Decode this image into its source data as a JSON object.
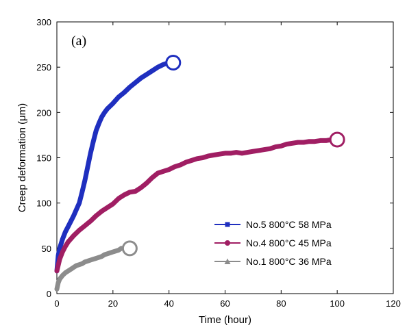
{
  "chart_data": {
    "type": "line",
    "panel_label": "(a)",
    "xlabel": "Time (hour)",
    "ylabel": "Creep deformation (μm)",
    "xlim": [
      0,
      120
    ],
    "ylim": [
      0,
      300
    ],
    "xticks": [
      0,
      20,
      40,
      60,
      80,
      100,
      120
    ],
    "yticks": [
      0,
      50,
      100,
      150,
      200,
      250,
      300
    ],
    "grid": false,
    "legend_position": "lower-right",
    "series": [
      {
        "name": "No.5 800°C 58 MPa",
        "color": "#1f2fbf",
        "marker": "square",
        "rupture_marker": {
          "x": 41.5,
          "y": 255
        },
        "x": [
          0,
          0.5,
          1,
          2,
          3,
          4,
          5,
          6,
          7,
          8,
          9,
          10,
          11,
          12,
          13,
          14,
          15,
          16,
          17,
          18,
          20,
          22,
          24,
          26,
          28,
          30,
          32,
          34,
          36,
          38,
          40
        ],
        "y": [
          25,
          42,
          50,
          60,
          68,
          74,
          80,
          86,
          93,
          100,
          112,
          125,
          140,
          155,
          168,
          180,
          188,
          195,
          200,
          204,
          210,
          217,
          222,
          228,
          233,
          238,
          242,
          246,
          250,
          253,
          255
        ]
      },
      {
        "name": "No.4 800°C 45 MPa",
        "color": "#a01e63",
        "marker": "circle",
        "rupture_marker": {
          "x": 100,
          "y": 170
        },
        "x": [
          0,
          1,
          2,
          3,
          4,
          6,
          8,
          10,
          12,
          14,
          16,
          18,
          20,
          22,
          24,
          26,
          28,
          30,
          32,
          34,
          36,
          38,
          40,
          42,
          44,
          46,
          48,
          50,
          52,
          54,
          56,
          58,
          60,
          62,
          64,
          66,
          68,
          70,
          72,
          74,
          76,
          78,
          80,
          82,
          84,
          86,
          88,
          90,
          92,
          94,
          96,
          98,
          100
        ],
        "y": [
          25,
          38,
          46,
          52,
          57,
          64,
          70,
          75,
          80,
          86,
          91,
          95,
          99,
          105,
          109,
          112,
          113,
          117,
          122,
          128,
          133,
          135,
          137,
          140,
          142,
          145,
          147,
          149,
          150,
          152,
          153,
          154,
          155,
          155,
          156,
          155,
          156,
          157,
          158,
          159,
          160,
          162,
          163,
          165,
          166,
          167,
          167,
          168,
          168,
          169,
          169,
          170,
          170
        ]
      },
      {
        "name": "No.1 800°C 36 MPa",
        "color": "#8c8c8c",
        "marker": "triangle",
        "rupture_marker": {
          "x": 26,
          "y": 50
        },
        "x": [
          0,
          0.5,
          1,
          2,
          3,
          4,
          5,
          6,
          7,
          8,
          9,
          10,
          11,
          12,
          13,
          14,
          15,
          16,
          17,
          18,
          19,
          20,
          21,
          22,
          23
        ],
        "y": [
          5,
          12,
          16,
          20,
          23,
          25,
          27,
          29,
          31,
          32,
          33,
          35,
          36,
          37,
          38,
          39,
          40,
          41,
          43,
          44,
          45,
          46,
          47,
          48,
          50
        ]
      }
    ]
  }
}
